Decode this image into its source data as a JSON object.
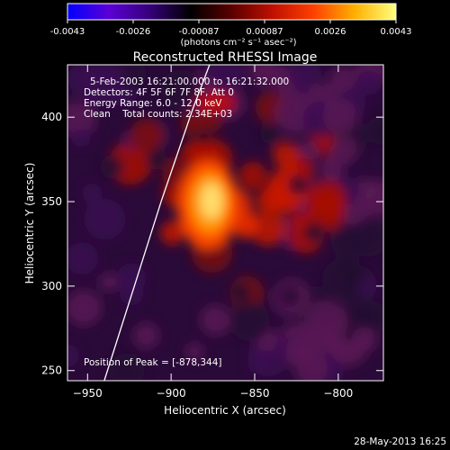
{
  "colorbar": {
    "ticks": [
      "-0.0043",
      "-0.0026",
      "-0.00087",
      "0.00087",
      "0.0026",
      "0.0043"
    ],
    "unit_label": "(photons cm⁻² s⁻¹ asec⁻²)",
    "colors": [
      "#0000ff",
      "#5b00d6",
      "#35007a",
      "#000000",
      "#5a0000",
      "#c01000",
      "#ff4000",
      "#ffb000",
      "#ffff80"
    ]
  },
  "annotations": {
    "time_range": "5-Feb-2003 16:21:00.000 to 16:21:32.000",
    "detectors": "Detectors: 4F 5F 6F 7F 8F, Att 0",
    "energy": "Energy Range: 6.0 - 12.0 keV",
    "algorithm": "Clean    Total counts: 2.34E+03",
    "peak": "Position of Peak = [-878,344]"
  },
  "footer": {
    "timestamp": "28-May-2013 16:25"
  },
  "chart_data": {
    "type": "heatmap",
    "title": "Reconstructed RHESSI Image",
    "xlabel": "Heliocentric X (arcsec)",
    "ylabel": "Heliocentric Y (arcsec)",
    "xlim": [
      -962,
      -773
    ],
    "ylim": [
      244,
      431
    ],
    "xticks": [
      -950,
      -900,
      -850,
      -800
    ],
    "yticks": [
      250,
      300,
      350,
      400
    ],
    "peak": {
      "x": -878,
      "y": 344
    },
    "limb": [
      [
        -940,
        244
      ],
      [
        -922,
        300
      ],
      [
        -906,
        350
      ],
      [
        -887,
        405
      ],
      [
        -877,
        431
      ]
    ]
  }
}
